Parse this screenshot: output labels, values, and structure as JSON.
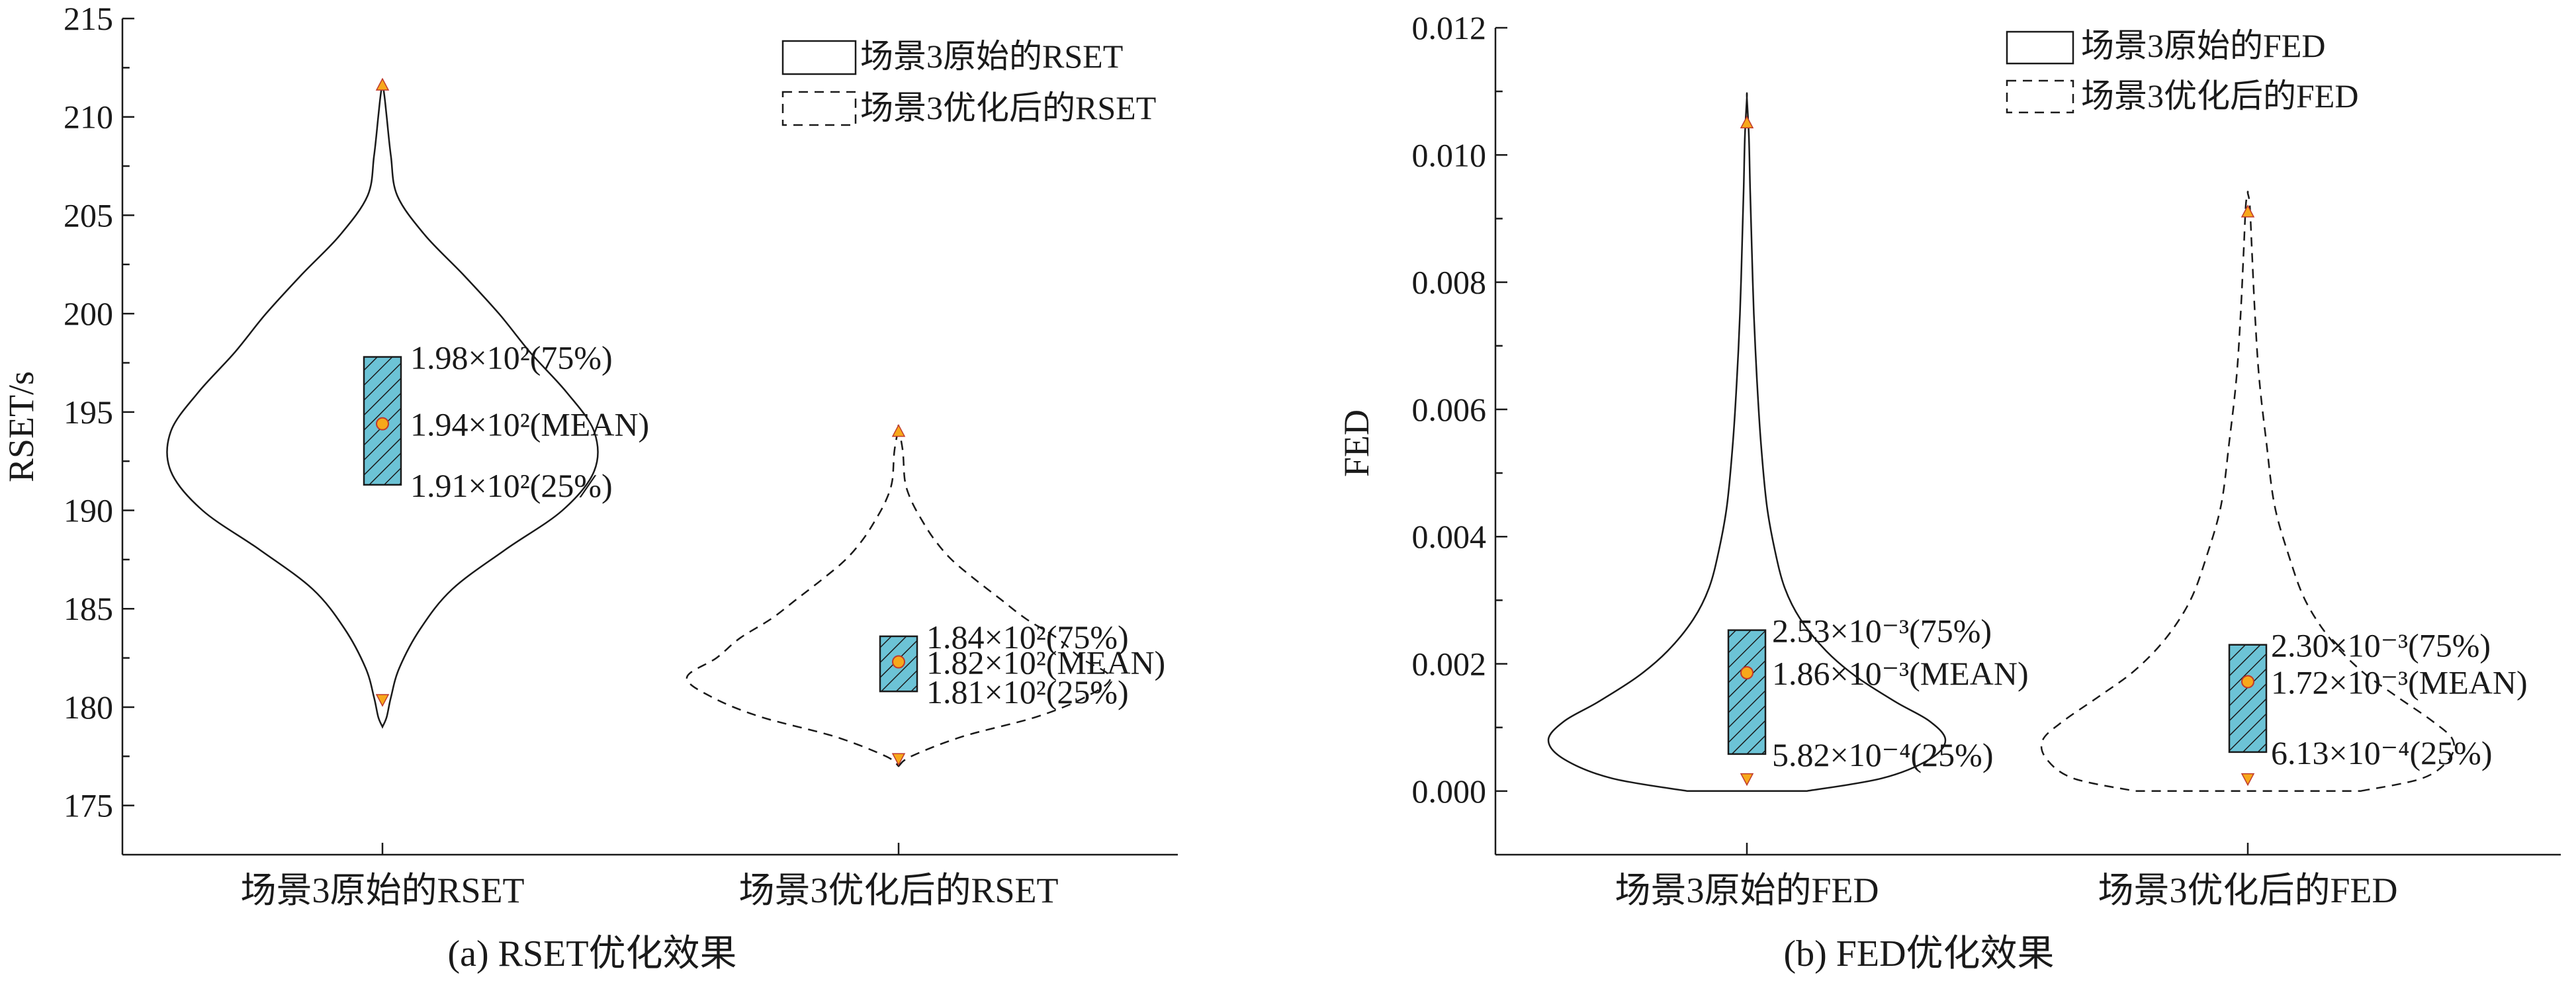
{
  "chart_data": [
    {
      "type": "violin",
      "caption": "(a) RSET优化效果",
      "ylabel": "RSET/s",
      "xlabel": "",
      "ylim": [
        172.5,
        215
      ],
      "yticks": [
        "175",
        "180",
        "185",
        "190",
        "195",
        "200",
        "205",
        "210",
        "215"
      ],
      "categories": [
        "场景3原始的RSET",
        "场景3优化后的RSET"
      ],
      "legend": {
        "position": "top-right",
        "entries": [
          "场景3原始的RSET",
          "场景3优化后的RSET"
        ]
      },
      "colors": {
        "box": "#6cc3d6",
        "mean": "#f7a81b",
        "marker": "#f7a81b"
      },
      "series": [
        {
          "category": "场景3原始的RSET",
          "line": "solid",
          "min": 179.0,
          "max": 211.8,
          "q1": 191.3,
          "mean": 194.4,
          "q3": 197.8,
          "min_marker": 180.4,
          "max_marker": 211.6,
          "labels": {
            "q3": "1.98×10²(75%)",
            "mean": "1.94×10²(MEAN)",
            "q1": "1.91×10²(25%)"
          },
          "profile_y": [
            179.0,
            179.5,
            180.5,
            182,
            184,
            186,
            188,
            190,
            192,
            194,
            196,
            198,
            200,
            202,
            204,
            206,
            208,
            210,
            211,
            211.8
          ],
          "profile_density": [
            0,
            0.02,
            0.04,
            0.08,
            0.18,
            0.33,
            0.58,
            0.85,
            1.0,
            1.0,
            0.87,
            0.7,
            0.55,
            0.38,
            0.2,
            0.07,
            0.04,
            0.02,
            0.01,
            0
          ]
        },
        {
          "category": "场景3优化后的RSET",
          "line": "dashed",
          "min": 177.0,
          "max": 194.2,
          "q1": 180.8,
          "mean": 182.3,
          "q3": 183.6,
          "min_marker": 177.4,
          "max_marker": 194.0,
          "labels": {
            "q3": "1.84×10²(75%)",
            "mean": "1.82×10²(MEAN)",
            "q1": "1.81×10²(25%)"
          },
          "profile_y": [
            177.0,
            177.5,
            178.5,
            179.5,
            180.5,
            181.5,
            182.5,
            183.5,
            184.5,
            185.5,
            186.5,
            187.5,
            188.5,
            189.5,
            190.5,
            191.5,
            193,
            194.2
          ],
          "profile_density": [
            0,
            0.06,
            0.3,
            0.65,
            0.88,
            1.0,
            0.86,
            0.75,
            0.6,
            0.48,
            0.36,
            0.25,
            0.17,
            0.11,
            0.06,
            0.03,
            0.02,
            0
          ]
        }
      ]
    },
    {
      "type": "violin",
      "caption": "(b) FED优化效果",
      "ylabel": "FED",
      "xlabel": "",
      "ylim": [
        -0.001,
        0.012
      ],
      "yticks": [
        "0.000",
        "0.002",
        "0.004",
        "0.006",
        "0.008",
        "0.010",
        "0.012"
      ],
      "categories": [
        "场景3原始的FED",
        "场景3优化后的FED"
      ],
      "legend": {
        "position": "top-right",
        "entries": [
          "场景3原始的FED",
          "场景3优化后的FED"
        ]
      },
      "colors": {
        "box": "#6cc3d6",
        "mean": "#f7a81b",
        "marker": "#f7a81b"
      },
      "series": [
        {
          "category": "场景3原始的FED",
          "line": "solid",
          "min": 0.0,
          "max": 0.0109,
          "q1": 0.000582,
          "mean": 0.00186,
          "q3": 0.00253,
          "min_marker": 0.0002,
          "max_marker": 0.0105,
          "labels": {
            "q3": "2.53×10⁻³(75%)",
            "mean": "1.86×10⁻³(MEAN)",
            "q1": "5.82×10⁻⁴(25%)"
          },
          "profile_y": [
            0.0,
            0.0002,
            0.0005,
            0.0008,
            0.0011,
            0.0014,
            0.0018,
            0.0022,
            0.0027,
            0.0032,
            0.0038,
            0.0045,
            0.0055,
            0.0065,
            0.0075,
            0.0085,
            0.0095,
            0.0103,
            0.0109
          ],
          "profile_density": [
            0.3,
            0.68,
            0.92,
            1.0,
            0.92,
            0.75,
            0.55,
            0.4,
            0.27,
            0.19,
            0.14,
            0.1,
            0.07,
            0.05,
            0.035,
            0.025,
            0.016,
            0.01,
            0
          ]
        },
        {
          "category": "场景3优化后的FED",
          "line": "dashed",
          "min": 0.0,
          "max": 0.0094,
          "q1": 0.000613,
          "mean": 0.00172,
          "q3": 0.0023,
          "min_marker": 0.0002,
          "max_marker": 0.0091,
          "labels": {
            "q3": "2.30×10⁻³(75%)",
            "mean": "1.72×10⁻³(MEAN)",
            "q1": "6.13×10⁻⁴(25%)"
          },
          "profile_y": [
            0.0,
            0.0002,
            0.0005,
            0.0008,
            0.0011,
            0.0015,
            0.0019,
            0.0024,
            0.003,
            0.0037,
            0.0045,
            0.0055,
            0.0065,
            0.0075,
            0.0085,
            0.0092,
            0.0094
          ],
          "profile_density": [
            0.55,
            0.85,
            0.98,
            1.0,
            0.9,
            0.72,
            0.55,
            0.4,
            0.28,
            0.2,
            0.13,
            0.09,
            0.055,
            0.035,
            0.02,
            0.01,
            0
          ]
        }
      ]
    }
  ]
}
